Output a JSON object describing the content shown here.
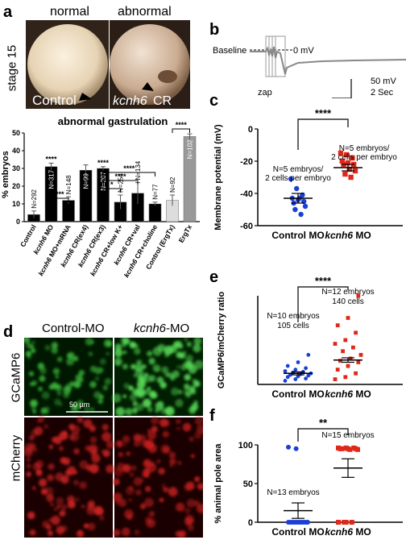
{
  "panels": {
    "a": "a",
    "b": "b",
    "c": "c",
    "d": "d",
    "e": "e",
    "f": "f"
  },
  "panel_a": {
    "normal_label": "normal",
    "abnormal_label": "abnormal",
    "stage_label": "stage 15",
    "control_text": "Control",
    "kcnh6_text": "kcnh6",
    "cr_text": " CR",
    "colors": {
      "black_bar": "#000000",
      "gray_bar": "#999999",
      "light_bar": "#dddddd",
      "dark_gray_bar": "#777777"
    }
  },
  "panel_b": {
    "baseline_label": "Baseline",
    "mv_label": "0 mV",
    "zap_label": "zap",
    "scale_mv": "50 mV",
    "scale_sec": "2 Sec"
  },
  "panel_d": {
    "control_mo": "Control-MO",
    "kcnh6_part": "kcnh6",
    "mo_part": "-MO",
    "gcamp": "GCaMP6",
    "mcherry": "mCherry",
    "scale": "50 µm"
  },
  "chart_data": [
    {
      "type": "bar",
      "title": "abnormal gastrulation",
      "ylabel": "% embryos",
      "ylim": [
        0,
        50
      ],
      "yticks": [
        0,
        10,
        20,
        30,
        40,
        50
      ],
      "categories": [
        "Control",
        "kcnh6 MO",
        "kcnh6 MO+mRNA",
        "kcnh6 CR(ex4)",
        "kcnh6 CR(ex3)",
        "kcnh6 CR+low K+",
        "kcnh6 CR+val",
        "kcnh6 CR+choline",
        "Control (ErgTx)",
        "ErgTx"
      ],
      "values": [
        4,
        31,
        12,
        29,
        30,
        11,
        16,
        10,
        12,
        48
      ],
      "errors": [
        2,
        2,
        2,
        3,
        1,
        4,
        6,
        1,
        3,
        1.5
      ],
      "n_labels": [
        "N=292",
        "N=317",
        "N=148",
        "N=99",
        "N=207",
        "N=254",
        "N=134",
        "N=77",
        "N=92",
        "N=102"
      ],
      "significance": [
        "***",
        "****",
        "****",
        "*",
        "****",
        "****",
        "****"
      ]
    },
    {
      "type": "scatter",
      "ylabel": "Membrane potential (mV)",
      "ylim": [
        -60,
        0
      ],
      "yticks": [
        0,
        -20,
        -40,
        -60
      ],
      "categories": [
        "Control MO",
        "kcnh6 MO"
      ],
      "annotations": [
        "N=5 embryos/",
        "2 cells per embryo",
        "N=5 embryos/",
        "2 cells per embryo"
      ],
      "significance": "****",
      "series": [
        {
          "values": [
            -31,
            -37,
            -41,
            -43,
            -44,
            -45,
            -46,
            -43,
            -48,
            -50,
            -53
          ],
          "mean": -43,
          "sem": 3
        },
        {
          "values": [
            -15,
            -16,
            -18,
            -20,
            -21,
            -22,
            -22,
            -25,
            -26,
            -28,
            -30
          ],
          "mean": -24,
          "sem": 2
        }
      ]
    },
    {
      "type": "scatter",
      "ylabel": "GCaMP6/mCherry ratio",
      "ylim": [
        0,
        12
      ],
      "categories": [
        "Control MO",
        "kcnh6 MO"
      ],
      "annotations": [
        "N=10 embryos",
        "105 cells",
        "N=12 embryos",
        "140 cells"
      ],
      "significance": "****",
      "series": [
        {
          "values": [
            0.5,
            0.7,
            0.8,
            1.0,
            1.1,
            1.2,
            1.3,
            1.4,
            1.5,
            1.6,
            1.7,
            1.8,
            2.0,
            2.2,
            2.5,
            3.0,
            4.0
          ],
          "mean": 1.5,
          "sem": 0.2
        },
        {
          "values": [
            0.7,
            1.0,
            1.5,
            2.0,
            2.5,
            3.0,
            3.2,
            3.5,
            4.0,
            4.5,
            5.0,
            5.5,
            6.0,
            7.0,
            8.0,
            9.0,
            12.0
          ],
          "mean": 3.3,
          "sem": 0.3
        }
      ]
    },
    {
      "type": "scatter",
      "ylabel": "% animal pole area",
      "ylim": [
        0,
        100
      ],
      "yticks": [
        0,
        50,
        100
      ],
      "categories": [
        "Control MO",
        "kcnh6 MO"
      ],
      "annotations": [
        "N=13 embryos",
        "N=15 embryos"
      ],
      "significance": "**",
      "series": [
        {
          "values": [
            97,
            95,
            0,
            0,
            0,
            0,
            0,
            0,
            0,
            0,
            0,
            0,
            0
          ],
          "mean": 15,
          "sem": 10
        },
        {
          "values": [
            96,
            96,
            96,
            95,
            95,
            95,
            95,
            94,
            94,
            0,
            0,
            0,
            0
          ],
          "mean": 70,
          "sem": 12
        }
      ]
    }
  ]
}
